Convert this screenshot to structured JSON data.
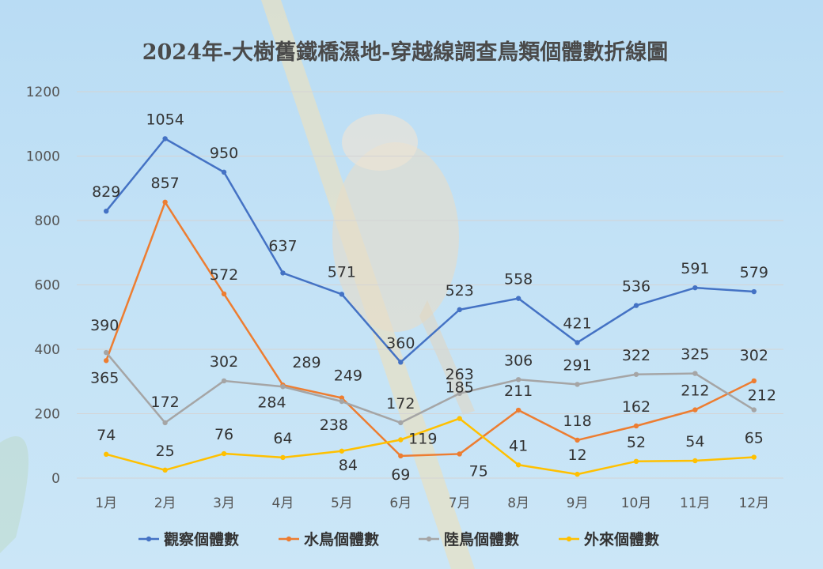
{
  "chart_data": {
    "type": "line",
    "title": "2024年-大樹舊鐵橋濕地-穿越線調查鳥類個體數折線圖",
    "categories": [
      "1月",
      "2月",
      "3月",
      "4月",
      "5月",
      "6月",
      "7月",
      "8月",
      "9月",
      "10月",
      "11月",
      "12月"
    ],
    "ylim": [
      0,
      1200
    ],
    "yticks": [
      0,
      200,
      400,
      600,
      800,
      1000,
      1200
    ],
    "grid": true,
    "legend_position": "bottom",
    "series": [
      {
        "name": "觀察個體數",
        "color": "#4472c4",
        "values": [
          829,
          1054,
          950,
          637,
          571,
          360,
          523,
          558,
          421,
          536,
          591,
          579
        ]
      },
      {
        "name": "水鳥個體數",
        "color": "#ed7d31",
        "values": [
          365,
          857,
          572,
          289,
          249,
          69,
          75,
          211,
          118,
          162,
          212,
          302
        ]
      },
      {
        "name": "陸鳥個體數",
        "color": "#a5a5a5",
        "values": [
          390,
          172,
          302,
          284,
          238,
          172,
          263,
          306,
          291,
          322,
          325,
          212
        ]
      },
      {
        "name": "外來個體數",
        "color": "#ffc000",
        "values": [
          74,
          25,
          76,
          64,
          84,
          119,
          185,
          41,
          12,
          52,
          54,
          65
        ]
      }
    ]
  }
}
